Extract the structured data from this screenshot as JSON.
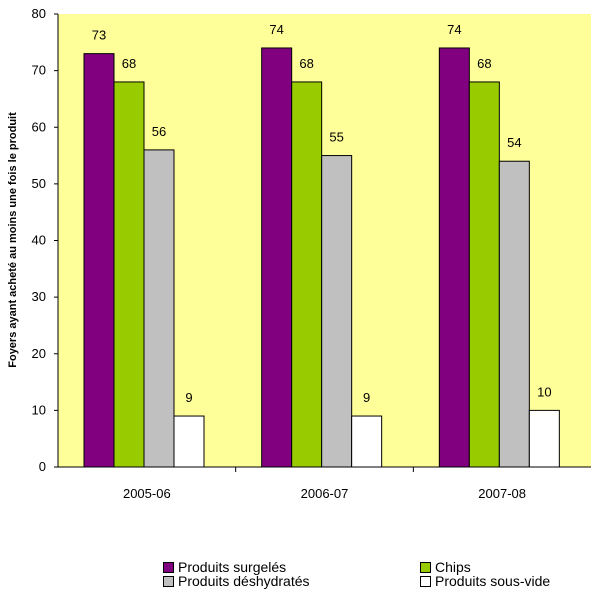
{
  "chart_data": {
    "type": "bar",
    "title": "",
    "xlabel": "",
    "ylabel": "Foyers ayant acheté au moins une fois le produit",
    "ylim": [
      0,
      80
    ],
    "yticks": [
      0,
      10,
      20,
      30,
      40,
      50,
      60,
      70,
      80
    ],
    "categories": [
      "2005-06",
      "2006-07",
      "2007-08"
    ],
    "series": [
      {
        "name": "Produits surgelés",
        "color": "#800080",
        "values": [
          73,
          74,
          74
        ]
      },
      {
        "name": "Chips",
        "color": "#99cc00",
        "values": [
          68,
          68,
          68
        ]
      },
      {
        "name": "Produits déshydratés",
        "color": "#c0c0c0",
        "values": [
          56,
          55,
          54
        ]
      },
      {
        "name": "Produits sous-vide",
        "color": "#ffffff",
        "values": [
          9,
          9,
          10
        ]
      }
    ],
    "data_labels": [
      [
        "73",
        "74",
        "74"
      ],
      [
        "68",
        "68",
        "68"
      ],
      [
        "56",
        "55",
        "54"
      ],
      [
        "9",
        "9",
        "10"
      ]
    ],
    "plot_background": "#ffff99",
    "grid": false,
    "legend_position": "bottom"
  }
}
